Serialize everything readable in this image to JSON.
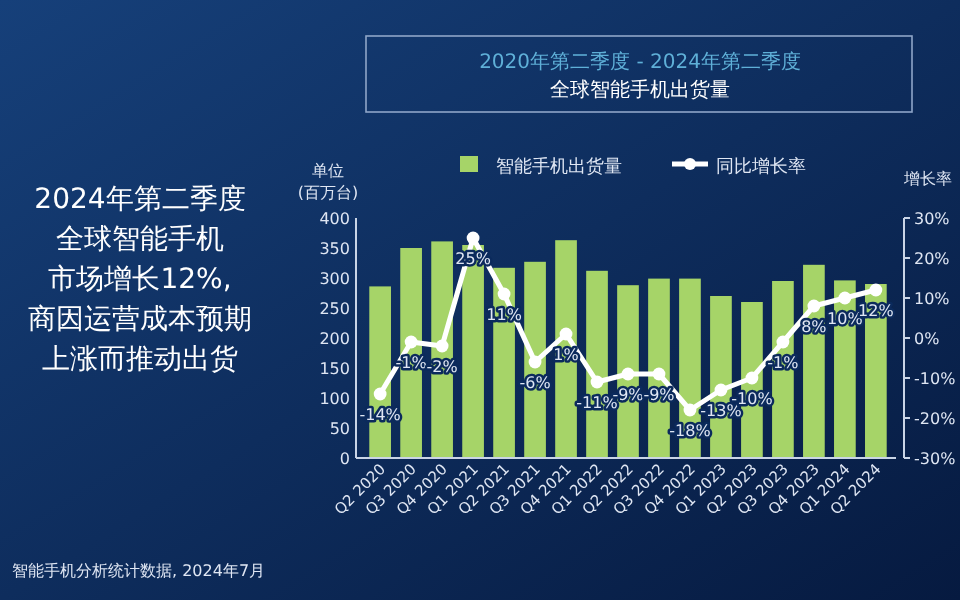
{
  "chart_data": {
    "type": "bar",
    "title": "2020年第二季度 - 2024年第二季度",
    "subtitle": "全球智能手机出货量",
    "ylabel": "单位 (百万台)",
    "y2label": "增长率",
    "categories": [
      "Q2 2020",
      "Q3 2020",
      "Q4 2020",
      "Q1 2021",
      "Q2 2021",
      "Q3 2021",
      "Q4 2021",
      "Q1 2022",
      "Q2 2022",
      "Q3 2022",
      "Q4 2022",
      "Q1 2023",
      "Q2 2023",
      "Q3 2023",
      "Q4 2023",
      "Q1 2024",
      "Q2 2024"
    ],
    "series": [
      {
        "name": "智能手机出货量",
        "color": "#a6d468",
        "values": [
          286,
          350,
          361,
          355,
          317,
          327,
          363,
          312,
          288,
          299,
          299,
          270,
          260,
          295,
          322,
          296,
          290
        ]
      },
      {
        "name": "同比增长率",
        "type": "line",
        "axis": "y2",
        "color": "#ffffff",
        "marker": "circle",
        "values": [
          -14,
          -1,
          -2,
          25,
          11,
          -6,
          1,
          -11,
          -9,
          -9,
          -18,
          -13,
          -10,
          -1,
          8,
          10,
          12
        ],
        "value_labels": [
          "-14%",
          "-1%",
          "-2%",
          "25%",
          "11%",
          "-6%",
          "1%",
          "-11%",
          "-9%",
          "-9%",
          "-18%",
          "-13%",
          "-10%",
          "-1%",
          "8%",
          "10%",
          "12%"
        ]
      }
    ],
    "ylim": [
      0,
      400
    ],
    "yticks": [
      0,
      50,
      100,
      150,
      200,
      250,
      300,
      350,
      400
    ],
    "y2lim": [
      -30,
      30
    ],
    "y2ticks": [
      {
        "value": -30,
        "label": "-30%"
      },
      {
        "value": -20,
        "label": "-20%"
      },
      {
        "value": -10,
        "label": "-10%"
      },
      {
        "value": 0,
        "label": "0%"
      },
      {
        "value": 10,
        "label": "10%"
      },
      {
        "value": 20,
        "label": "20%"
      },
      {
        "value": 30,
        "label": "30%"
      }
    ],
    "legend": "top",
    "grid": false,
    "annotations": [
      "2024年第二季度",
      "全球智能手机",
      "市场增长12%,",
      "商因运营成本预期",
      "上涨而推动出货",
      "智能手机分析统计数据, 2024年7月"
    ]
  }
}
